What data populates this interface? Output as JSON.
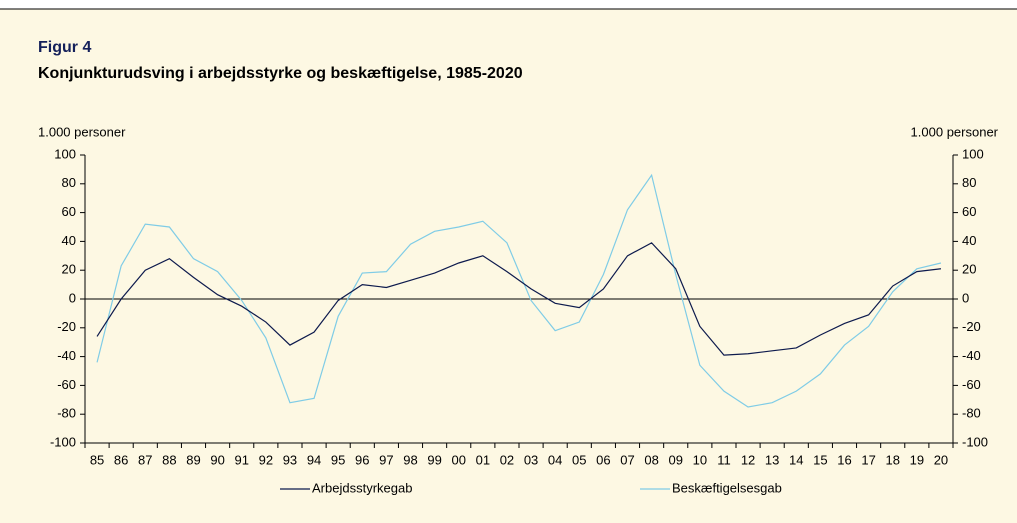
{
  "chart_data": {
    "type": "line",
    "title": "Figur 4",
    "subtitle": "Konjunkturudsving i arbejdsstyrke og beskæftigelse, 1985-2020",
    "ylabel": "1.000 personer",
    "y2label": "1.000 personer",
    "categories": [
      "85",
      "86",
      "87",
      "88",
      "89",
      "90",
      "91",
      "92",
      "93",
      "94",
      "95",
      "96",
      "97",
      "98",
      "99",
      "00",
      "01",
      "02",
      "03",
      "04",
      "05",
      "06",
      "07",
      "08",
      "09",
      "10",
      "11",
      "12",
      "13",
      "14",
      "15",
      "16",
      "17",
      "18",
      "19",
      "20"
    ],
    "series": [
      {
        "name": "Arbejdsstyrkegab",
        "color": "#0d1a4d",
        "values": [
          -26,
          0,
          20,
          28,
          15,
          3,
          -5,
          -16,
          -32,
          -23,
          -1,
          10,
          8,
          13,
          18,
          25,
          30,
          19,
          7,
          -3,
          -6,
          7,
          30,
          39,
          21,
          -19,
          -39,
          -38,
          -36,
          -34,
          -25,
          -17,
          -11,
          9,
          19,
          21
        ]
      },
      {
        "name": "Beskæftigelsesgab",
        "color": "#7fcce6",
        "values": [
          -44,
          23,
          52,
          50,
          28,
          19,
          -1,
          -27,
          -72,
          -69,
          -12,
          18,
          19,
          38,
          47,
          50,
          54,
          39,
          -1,
          -22,
          -16,
          17,
          62,
          86,
          17,
          -46,
          -64,
          -75,
          -72,
          -64,
          -52,
          -32,
          -19,
          5,
          21,
          25
        ]
      }
    ],
    "ylim": [
      -100,
      100
    ],
    "yticks": [
      -100,
      -80,
      -60,
      -40,
      -20,
      0,
      20,
      40,
      60,
      80,
      100
    ],
    "y2lim": [
      -100,
      100
    ],
    "y2ticks": [
      -100,
      -80,
      -60,
      -40,
      -20,
      0,
      20,
      40,
      60,
      80,
      100
    ]
  }
}
